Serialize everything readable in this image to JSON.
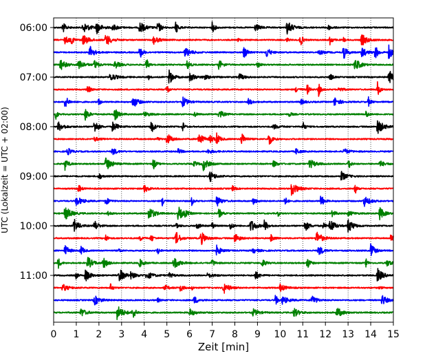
{
  "chart_data": {
    "type": "line",
    "title": "",
    "xlabel": "Zeit  [min]",
    "ylabel": "UTC (Lokalzeit = UTC + 02:00)",
    "xlim": [
      0,
      15
    ],
    "x_ticks": [
      "0",
      "1",
      "2",
      "3",
      "4",
      "5",
      "6",
      "7",
      "8",
      "9",
      "10",
      "11",
      "12",
      "13",
      "14",
      "15"
    ],
    "y_ticks": [
      {
        "label": "06:00",
        "trace_index": 0
      },
      {
        "label": "07:00",
        "trace_index": 4
      },
      {
        "label": "08:00",
        "trace_index": 8
      },
      {
        "label": "09:00",
        "trace_index": 12
      },
      {
        "label": "10:00",
        "trace_index": 16
      },
      {
        "label": "11:00",
        "trace_index": 20
      }
    ],
    "trace_interval_min": 15,
    "grid": "vertical dotted",
    "colors": [
      "#000000",
      "#ff0000",
      "#0000ff",
      "#008000"
    ],
    "traces": [
      {
        "start": "06:00",
        "color": "#000000",
        "events": [
          0.4,
          1.3,
          1.9,
          2.6,
          3.8,
          4.6,
          5.4,
          7.0,
          8.9,
          10.3,
          12.1
        ]
      },
      {
        "start": "06:15",
        "color": "#ff0000",
        "events": [
          0.5,
          0.8,
          1.3,
          2.3,
          4.4,
          8.1,
          10.3,
          10.9,
          12.2,
          12.8,
          13.6
        ]
      },
      {
        "start": "06:30",
        "color": "#0000ff",
        "events": [
          1.6,
          3.8,
          5.8,
          8.4,
          9.4,
          11.7,
          12.8,
          13.6,
          14.2,
          14.8
        ]
      },
      {
        "start": "06:45",
        "color": "#008000",
        "events": [
          0.3,
          1.1,
          1.8,
          2.7,
          4.1,
          5.9,
          7.3,
          9.0,
          13.3
        ]
      },
      {
        "start": "07:00",
        "color": "#000000",
        "events": [
          2.5,
          4.2,
          5.1,
          6.0,
          6.6,
          8.2,
          12.2,
          14.8
        ]
      },
      {
        "start": "07:15",
        "color": "#ff0000",
        "events": [
          1.5,
          5.0,
          10.7,
          11.2,
          11.7,
          12.6,
          14.3
        ]
      },
      {
        "start": "07:30",
        "color": "#0000ff",
        "events": [
          0.5,
          2.0,
          3.5,
          5.7,
          8.6,
          10.9,
          12.4,
          13.9
        ]
      },
      {
        "start": "07:45",
        "color": "#008000",
        "events": [
          0.1,
          1.4,
          2.7,
          4.0,
          6.2,
          7.3,
          10.4,
          13.8
        ]
      },
      {
        "start": "08:00",
        "color": "#000000",
        "events": [
          0.2,
          1.8,
          2.6,
          4.3,
          5.7,
          9.7,
          11.0,
          14.3
        ]
      },
      {
        "start": "08:15",
        "color": "#ff0000",
        "events": [
          1.8,
          4.6,
          5.0,
          6.4,
          6.9,
          7.2,
          8.3,
          9.5
        ]
      },
      {
        "start": "08:30",
        "color": "#0000ff",
        "events": [
          0.6,
          2.6,
          5.5,
          6.8,
          10.7,
          12.8
        ]
      },
      {
        "start": "08:45",
        "color": "#008000",
        "events": [
          0.5,
          2.3,
          4.4,
          6.2,
          6.6,
          9.7,
          11.3,
          13.0,
          14.4
        ]
      },
      {
        "start": "09:00",
        "color": "#000000",
        "events": [
          2.0,
          6.9,
          12.7
        ]
      },
      {
        "start": "09:15",
        "color": "#ff0000",
        "events": [
          1.1,
          4.0,
          7.9,
          10.5,
          13.3
        ]
      },
      {
        "start": "09:30",
        "color": "#0000ff",
        "events": [
          1.0,
          2.3,
          4.8,
          6.1,
          7.2,
          8.8,
          10.2,
          11.8,
          13.7
        ]
      },
      {
        "start": "09:45",
        "color": "#008000",
        "events": [
          0.5,
          2.4,
          4.2,
          5.5,
          5.8,
          7.3,
          9.9,
          12.3,
          13.0,
          14.4
        ]
      },
      {
        "start": "10:00",
        "color": "#000000",
        "events": [
          0.9,
          1.8,
          5.4,
          6.3,
          7.0,
          7.8,
          8.7,
          9.3,
          11.1,
          11.9,
          12.2,
          13.0
        ]
      },
      {
        "start": "10:15",
        "color": "#ff0000",
        "events": [
          2.3,
          3.8,
          4.3,
          5.4,
          6.5,
          8.0,
          9.6,
          11.6,
          14.9
        ]
      },
      {
        "start": "10:30",
        "color": "#0000ff",
        "events": [
          0.5,
          1.2,
          2.9,
          4.6,
          7.2,
          8.8,
          11.7,
          14.0
        ]
      },
      {
        "start": "10:45",
        "color": "#008000",
        "events": [
          0.2,
          1.5,
          2.2,
          3.8,
          5.3,
          7.0,
          9.2,
          11.2,
          13.8,
          14.7
        ]
      },
      {
        "start": "11:00",
        "color": "#000000",
        "events": [
          1.0,
          1.4,
          2.9,
          3.4,
          4.1,
          5.1,
          6.8,
          8.9,
          14.3
        ]
      },
      {
        "start": "11:15",
        "color": "#ff0000",
        "events": [
          0.4,
          2.5,
          4.9,
          5.6,
          6.1,
          7.5,
          10.0,
          14.4
        ]
      },
      {
        "start": "11:30",
        "color": "#0000ff",
        "events": [
          1.8,
          4.6,
          6.2,
          9.8,
          10.1,
          11.4,
          14.5
        ]
      },
      {
        "start": "11:45",
        "color": "#008000",
        "events": [
          1.2,
          2.8,
          3.5,
          6.0,
          8.8,
          10.6,
          12.5
        ]
      }
    ]
  }
}
